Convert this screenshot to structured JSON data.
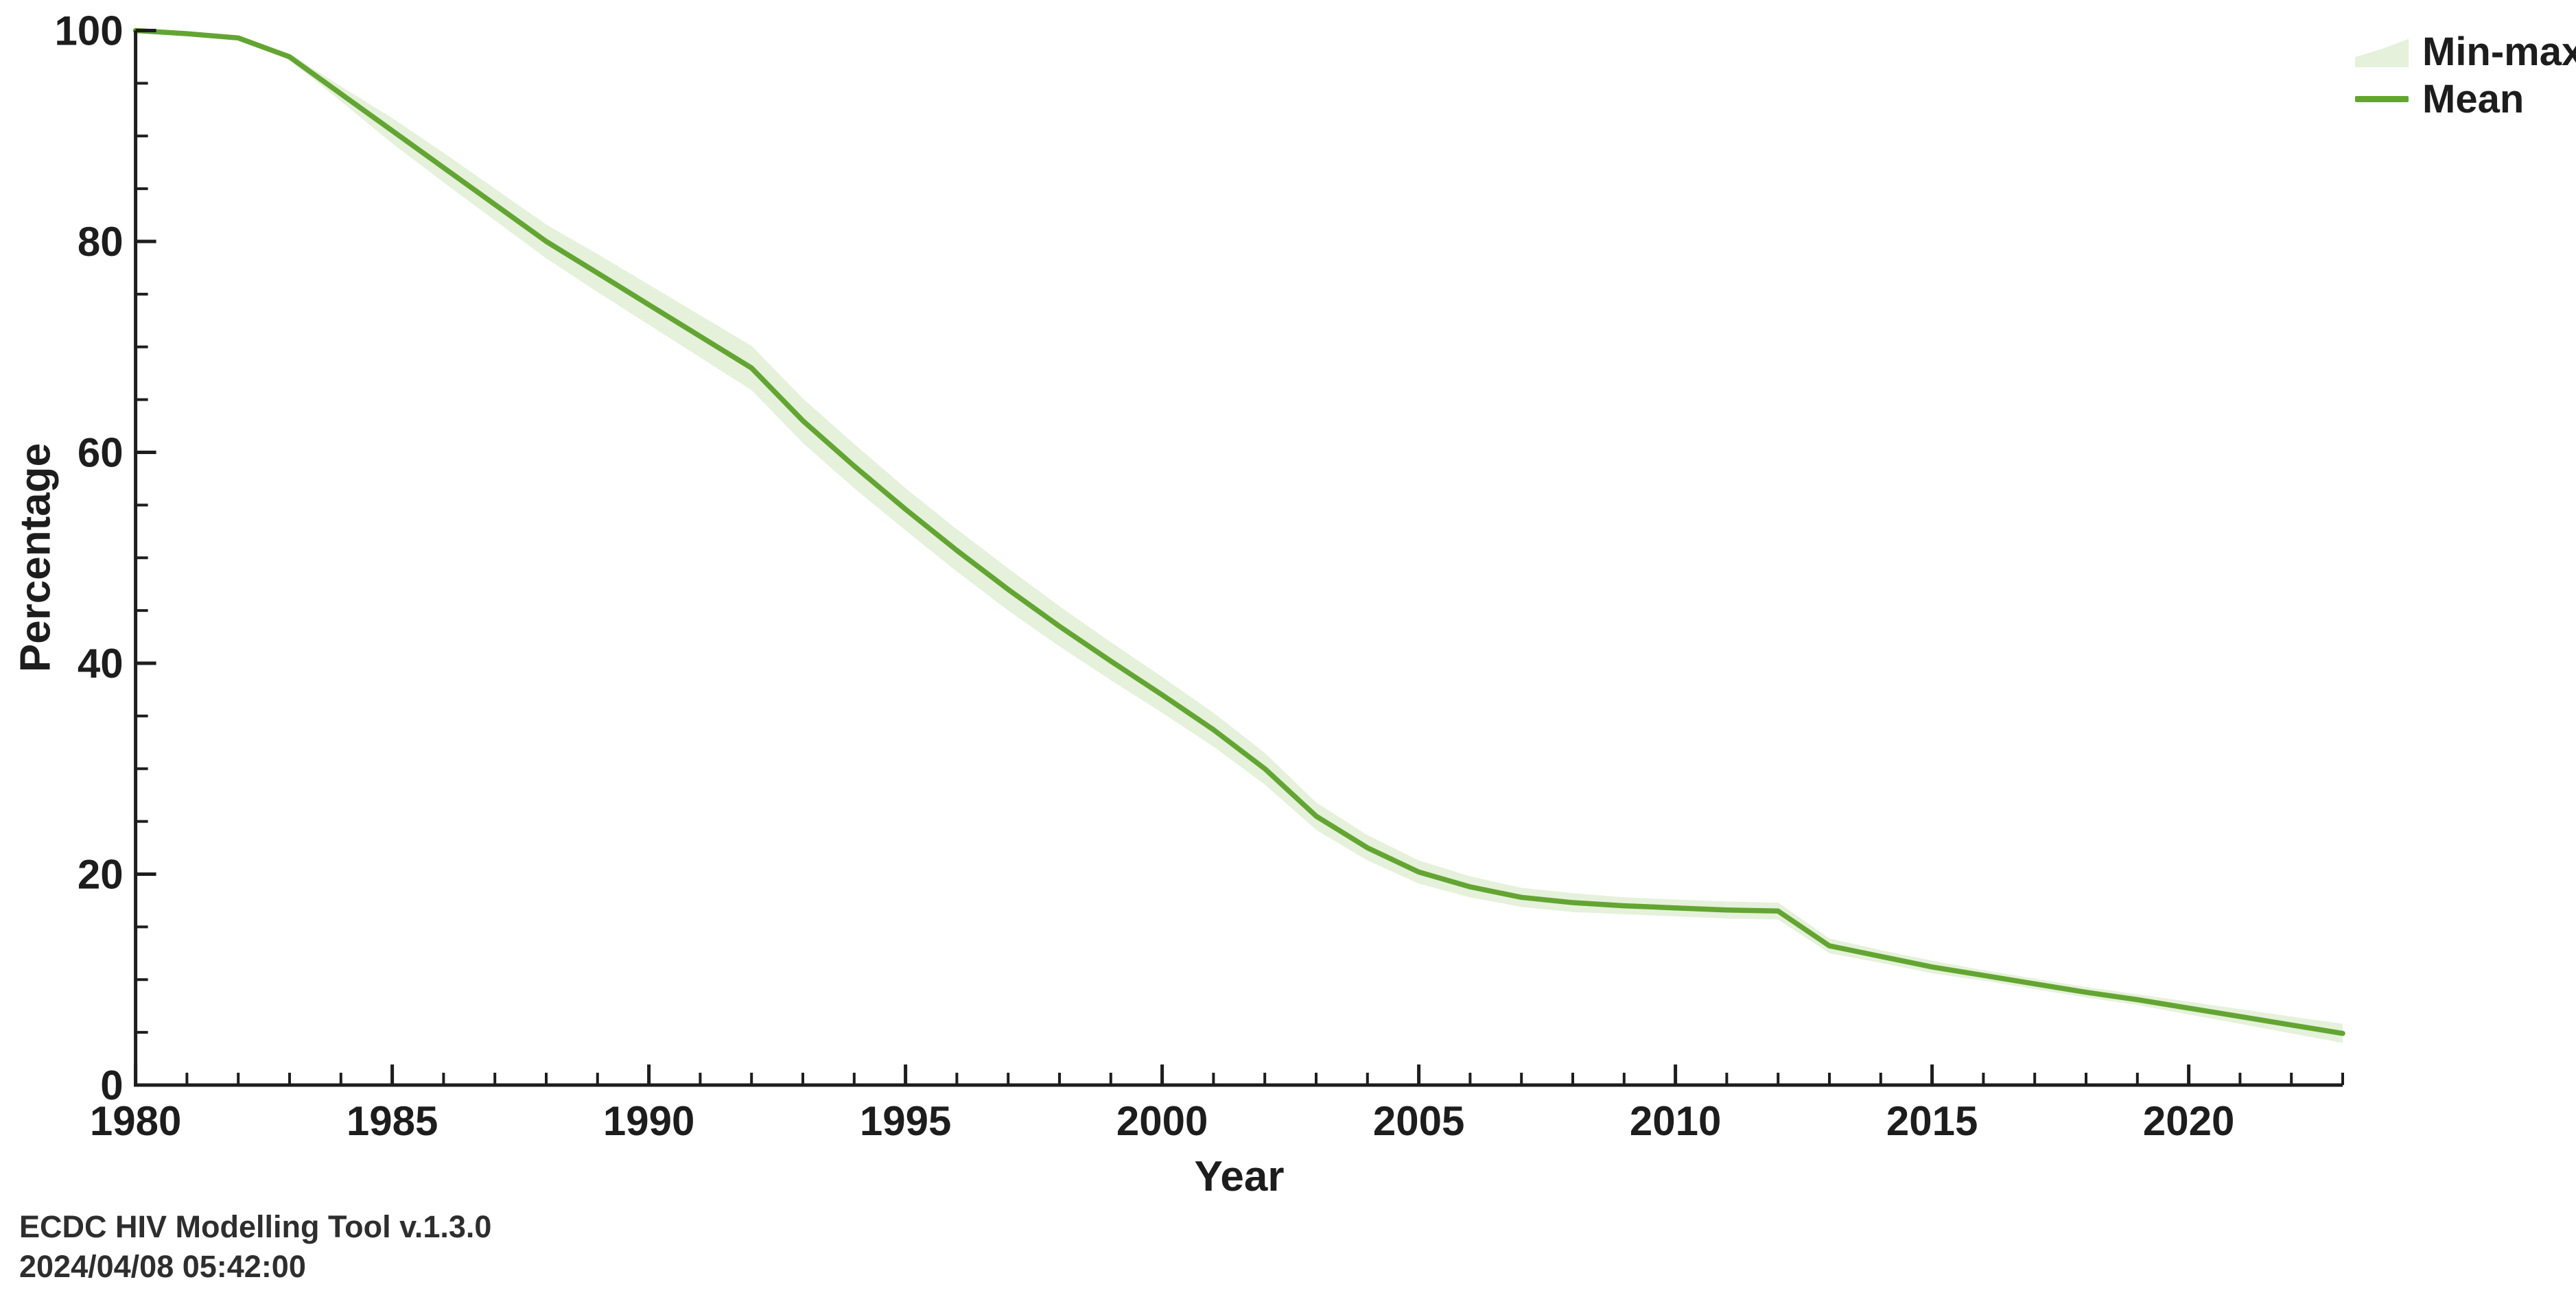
{
  "chart_data": {
    "type": "line",
    "title": "",
    "xlabel": "Year",
    "ylabel": "Percentage",
    "xlim": [
      1980,
      2023
    ],
    "ylim": [
      0,
      100
    ],
    "grid": false,
    "legend_position": "top-right-outside",
    "x_ticks_major": [
      1980,
      1985,
      1990,
      1995,
      2000,
      2005,
      2010,
      2015,
      2020
    ],
    "x_tick_minor_step": 1,
    "y_ticks_major": [
      0,
      20,
      40,
      60,
      80,
      100
    ],
    "y_tick_minor_step": 5,
    "x": [
      1980,
      1981,
      1982,
      1983,
      1984,
      1985,
      1986,
      1987,
      1988,
      1989,
      1990,
      1991,
      1992,
      1993,
      1994,
      1995,
      1996,
      1997,
      1998,
      1999,
      2000,
      2001,
      2002,
      2003,
      2004,
      2005,
      2006,
      2007,
      2008,
      2009,
      2010,
      2011,
      2012,
      2013,
      2014,
      2015,
      2016,
      2017,
      2018,
      2019,
      2020,
      2021,
      2022,
      2023
    ],
    "series": [
      {
        "name": "Min-max",
        "style": "band",
        "max": [
          100,
          99.7,
          99.3,
          97.8,
          94.7,
          91.7,
          88.4,
          85.0,
          81.6,
          78.8,
          75.9,
          73.0,
          70.1,
          65.1,
          60.8,
          56.6,
          52.7,
          49.0,
          45.4,
          42.0,
          38.7,
          35.3,
          31.5,
          26.8,
          23.7,
          21.3,
          19.8,
          18.7,
          18.2,
          17.8,
          17.6,
          17.4,
          17.3,
          13.9,
          12.8,
          11.8,
          10.9,
          10.1,
          9.3,
          8.6,
          7.9,
          7.2,
          6.5,
          5.8
        ],
        "min": [
          100,
          99.7,
          99.3,
          97.2,
          93.3,
          89.3,
          85.6,
          82.0,
          78.4,
          75.2,
          72.1,
          69.0,
          65.9,
          60.9,
          56.6,
          52.6,
          48.7,
          45.0,
          41.6,
          38.4,
          35.3,
          32.1,
          28.5,
          24.2,
          21.3,
          19.1,
          17.8,
          16.9,
          16.4,
          16.2,
          16.0,
          15.8,
          15.7,
          12.5,
          11.6,
          10.6,
          9.9,
          9.1,
          8.3,
          7.6,
          6.7,
          5.8,
          4.9,
          4.0
        ]
      },
      {
        "name": "Mean",
        "style": "line",
        "values": [
          100,
          99.7,
          99.3,
          97.5,
          94.0,
          90.5,
          87.0,
          83.5,
          80.0,
          77.0,
          74.0,
          71.0,
          68.0,
          63.0,
          58.7,
          54.6,
          50.7,
          47.0,
          43.5,
          40.2,
          37.0,
          33.7,
          30.0,
          25.5,
          22.5,
          20.2,
          18.8,
          17.8,
          17.3,
          17.0,
          16.8,
          16.6,
          16.5,
          13.2,
          12.2,
          11.2,
          10.4,
          9.6,
          8.8,
          8.1,
          7.3,
          6.5,
          5.7,
          4.9
        ]
      }
    ],
    "legend": [
      {
        "label": "Min-max",
        "swatch": "band"
      },
      {
        "label": "Mean",
        "swatch": "line"
      }
    ]
  },
  "colors": {
    "mean_line": "#63a532",
    "band": "#e5f1da",
    "axis": "#1d1d1d",
    "tick_text": "#1d1d1d",
    "background": "#ffffff"
  },
  "footer": {
    "line1": "ECDC HIV Modelling Tool v.1.3.0",
    "line2": "2024/04/08 05:42:00"
  }
}
